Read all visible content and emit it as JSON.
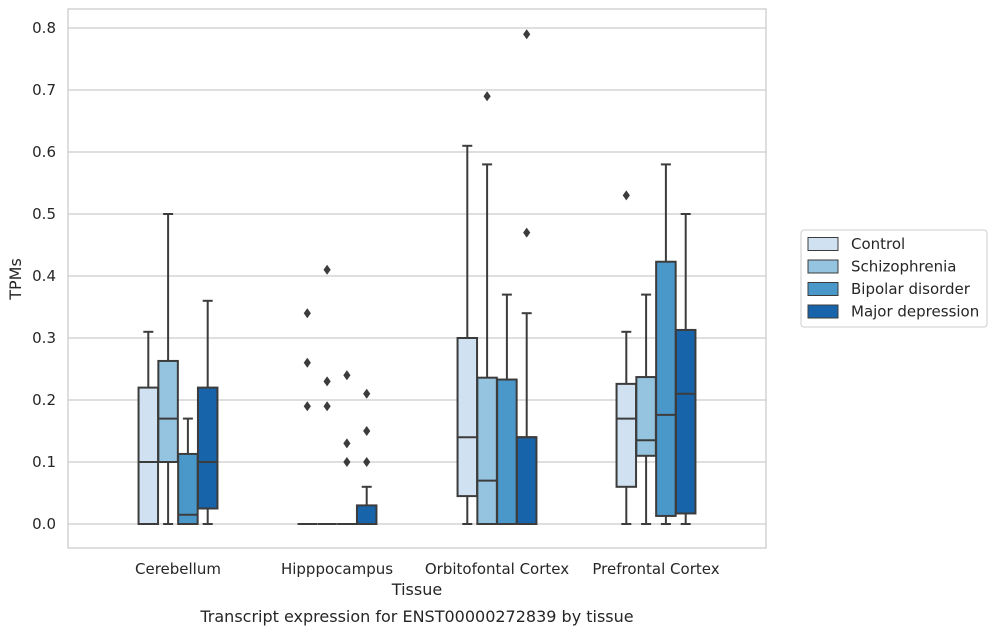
{
  "chart_data": {
    "type": "box",
    "xlabel": "Tissue",
    "ylabel": "TPMs",
    "caption": "Transcript expression for ENST00000272839 by tissue",
    "ylim": [
      -0.04,
      0.83
    ],
    "yticks": [
      "0.0",
      "0.1",
      "0.2",
      "0.3",
      "0.4",
      "0.5",
      "0.6",
      "0.7",
      "0.8"
    ],
    "grid": "horizontal",
    "legend_placement": "right",
    "categories": [
      "Cerebellum",
      "Hipppocampus",
      "Orbitofontal Cortex",
      "Prefrontal Cortex"
    ],
    "series": [
      {
        "name": "Control",
        "color": "#d0e1f2",
        "boxes": [
          {
            "whisker_low": 0.0,
            "q1": 0.0,
            "median": 0.1,
            "q3": 0.22,
            "whisker_high": 0.31,
            "outliers": []
          },
          {
            "whisker_low": 0.0,
            "q1": 0.0,
            "median": 0.0,
            "q3": 0.0,
            "whisker_high": 0.0,
            "outliers": [
              0.19,
              0.26,
              0.34
            ]
          },
          {
            "whisker_low": 0.0,
            "q1": 0.045,
            "median": 0.14,
            "q3": 0.3,
            "whisker_high": 0.61,
            "outliers": []
          },
          {
            "whisker_low": 0.0,
            "q1": 0.06,
            "median": 0.17,
            "q3": 0.226,
            "whisker_high": 0.31,
            "outliers": [
              0.53
            ]
          }
        ]
      },
      {
        "name": "Schizophrenia",
        "color": "#94c4df",
        "boxes": [
          {
            "whisker_low": 0.0,
            "q1": 0.1,
            "median": 0.17,
            "q3": 0.263,
            "whisker_high": 0.5,
            "outliers": []
          },
          {
            "whisker_low": 0.0,
            "q1": 0.0,
            "median": 0.0,
            "q3": 0.0,
            "whisker_high": 0.0,
            "outliers": [
              0.19,
              0.23,
              0.41
            ]
          },
          {
            "whisker_low": 0.0,
            "q1": 0.0,
            "median": 0.07,
            "q3": 0.236,
            "whisker_high": 0.58,
            "outliers": [
              0.69
            ]
          },
          {
            "whisker_low": 0.0,
            "q1": 0.11,
            "median": 0.135,
            "q3": 0.237,
            "whisker_high": 0.37,
            "outliers": []
          }
        ]
      },
      {
        "name": "Bipolar disorder",
        "color": "#4a98c9",
        "boxes": [
          {
            "whisker_low": 0.0,
            "q1": 0.0,
            "median": 0.015,
            "q3": 0.113,
            "whisker_high": 0.17,
            "outliers": []
          },
          {
            "whisker_low": 0.0,
            "q1": 0.0,
            "median": 0.0,
            "q3": 0.0,
            "whisker_high": 0.0,
            "outliers": [
              0.1,
              0.13,
              0.24
            ]
          },
          {
            "whisker_low": 0.0,
            "q1": 0.0,
            "median": 0.0,
            "q3": 0.233,
            "whisker_high": 0.37,
            "outliers": []
          },
          {
            "whisker_low": 0.0,
            "q1": 0.013,
            "median": 0.176,
            "q3": 0.423,
            "whisker_high": 0.58,
            "outliers": []
          }
        ]
      },
      {
        "name": "Major depression",
        "color": "#1764ab",
        "boxes": [
          {
            "whisker_low": 0.0,
            "q1": 0.025,
            "median": 0.1,
            "q3": 0.22,
            "whisker_high": 0.36,
            "outliers": []
          },
          {
            "whisker_low": 0.0,
            "q1": 0.0,
            "median": 0.0,
            "q3": 0.03,
            "whisker_high": 0.06,
            "outliers": [
              0.1,
              0.15,
              0.21
            ]
          },
          {
            "whisker_low": 0.0,
            "q1": 0.0,
            "median": 0.14,
            "q3": 0.14,
            "whisker_high": 0.34,
            "outliers": [
              0.47,
              0.79
            ]
          },
          {
            "whisker_low": 0.0,
            "q1": 0.017,
            "median": 0.21,
            "q3": 0.313,
            "whisker_high": 0.5,
            "outliers": []
          }
        ]
      }
    ]
  },
  "colors": {
    "edge": "#3c3c3c",
    "grid": "#cccccc",
    "frame": "#cccccc"
  }
}
